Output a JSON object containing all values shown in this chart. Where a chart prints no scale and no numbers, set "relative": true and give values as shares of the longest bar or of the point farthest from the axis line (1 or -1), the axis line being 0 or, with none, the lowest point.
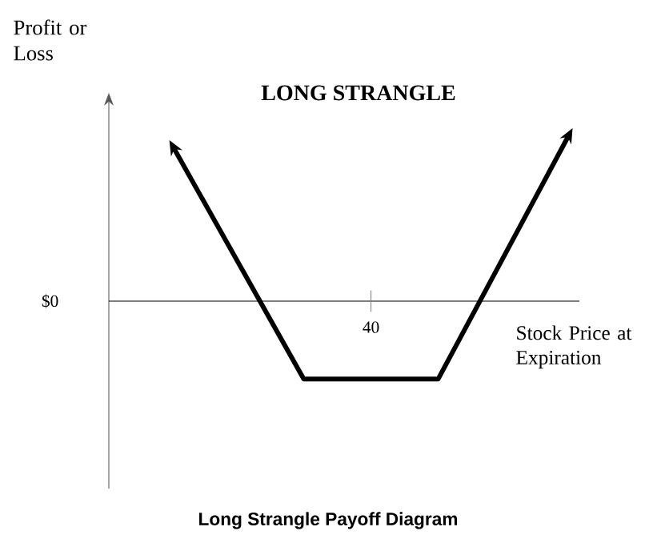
{
  "chart_data": {
    "type": "line",
    "title": "LONG STRANGLE",
    "xlabel": "Stock Price at Expiration",
    "ylabel": "Profit or Loss",
    "relative": true,
    "categories": [
      null,
      null,
      null,
      null
    ],
    "series": [
      {
        "color": "#000000",
        "values": [
          0.93,
          -0.45,
          -0.45,
          1.0
        ]
      }
    ],
    "line_style": "solid",
    "annotations": [
      "$0",
      "40",
      "Long Strangle Payoff Diagram"
    ]
  }
}
